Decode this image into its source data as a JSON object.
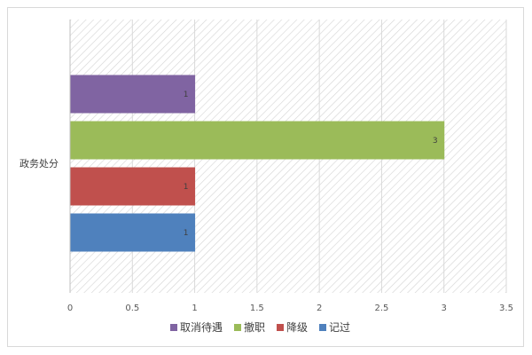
{
  "chart_data": {
    "type": "bar",
    "orientation": "horizontal",
    "categories": [
      "政务处分"
    ],
    "series": [
      {
        "name": "记过",
        "values": [
          1
        ],
        "color": "#4f81bd"
      },
      {
        "name": "降级",
        "values": [
          1
        ],
        "color": "#c0504d"
      },
      {
        "name": "撤职",
        "values": [
          3
        ],
        "color": "#9bbb59"
      },
      {
        "name": "取消待遇",
        "values": [
          1
        ],
        "color": "#8064a2"
      }
    ],
    "legend_order": [
      "取消待遇",
      "撤职",
      "降级",
      "记过"
    ],
    "xlim": [
      0,
      3.5
    ],
    "xticks": [
      "0",
      "0.5",
      "1",
      "1.5",
      "2",
      "2.5",
      "3",
      "3.5"
    ],
    "data_labels": true,
    "grid": true,
    "plot_background": "hatched",
    "legend_position": "bottom"
  }
}
